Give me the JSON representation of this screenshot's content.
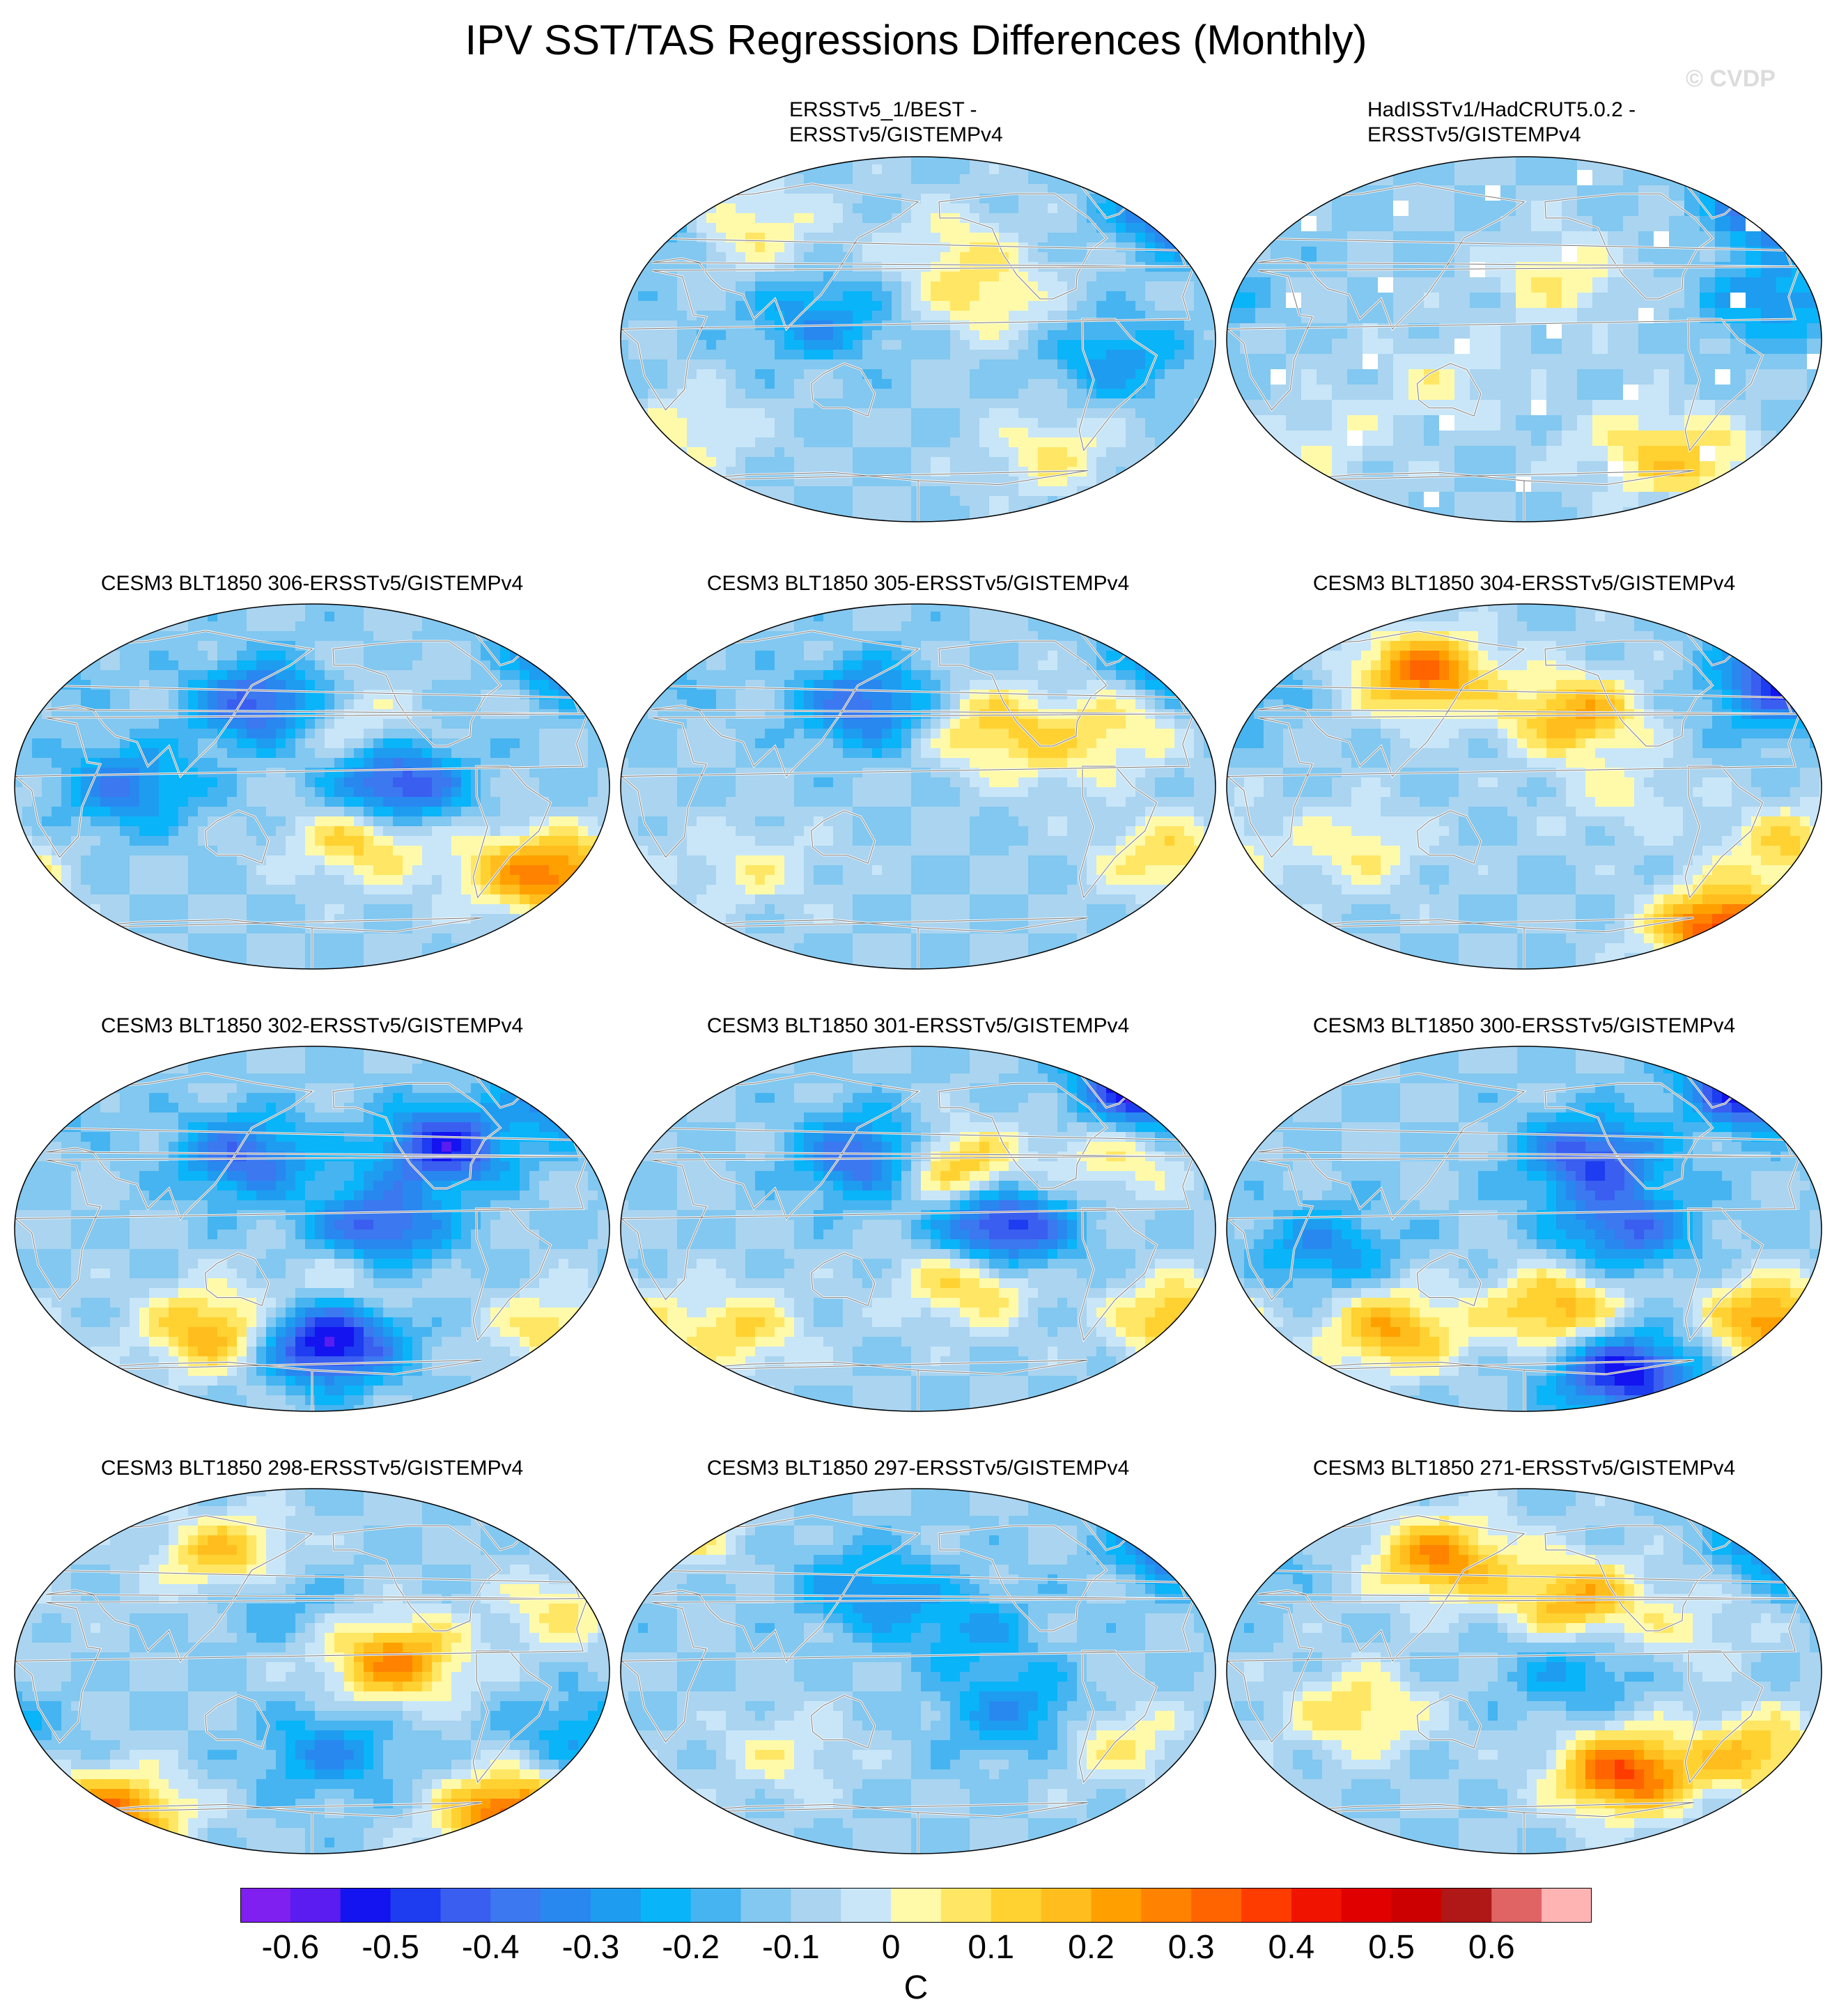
{
  "title": "IPV SST/TAS Regressions Differences (Monthly)",
  "watermark": "© CVDP",
  "colorbar": {
    "units": "C",
    "tick_labels": [
      "-0.6",
      "-0.5",
      "-0.4",
      "-0.3",
      "-0.2",
      "-0.1",
      "0",
      "0.1",
      "0.2",
      "0.3",
      "0.4",
      "0.5",
      "0.6"
    ],
    "colors": [
      "#7f1ff0",
      "#5a1cf0",
      "#1414f0",
      "#1e3cf0",
      "#3a5ef0",
      "#3c78f0",
      "#2888f0",
      "#1e9cf0",
      "#0ab4f8",
      "#46b4f0",
      "#82c8f0",
      "#aad4f0",
      "#c8e6f8",
      "#fffaaa",
      "#ffe664",
      "#ffd232",
      "#ffbe1e",
      "#ffa000",
      "#ff8200",
      "#ff6400",
      "#ff3c00",
      "#f01400",
      "#e00000",
      "#cc0000",
      "#b01818",
      "#e06464",
      "#ffb4b4"
    ]
  },
  "chart_data": {
    "type": "heatmap",
    "title": "IPV SST/TAS Regressions Differences (Monthly)",
    "projection": "robinson-like",
    "units": "C",
    "contour_range": [
      -0.65,
      0.65
    ],
    "contour_interval": 0.05,
    "panels": [
      {
        "title": "ERSSTv5_1/BEST - ERSSTv5/GISTEMPv4",
        "row": 0,
        "col": 1,
        "masked_coarse": false,
        "blobs": [
          [
            -140,
            20,
            0.15
          ],
          [
            -160,
            45,
            0.12
          ],
          [
            -10,
            65,
            -0.6
          ],
          [
            -100,
            -55,
            0.15
          ],
          [
            80,
            55,
            0.15
          ],
          [
            40,
            -45,
            0.12
          ],
          [
            -60,
            -10,
            -0.18
          ],
          [
            120,
            10,
            -0.2
          ]
        ]
      },
      {
        "title": "HadISSTv1/HadCRUT5.0.2 - ERSSTv5/GISTEMPv4",
        "row": 0,
        "col": 2,
        "masked_coarse": true,
        "blobs": [
          [
            -160,
            30,
            0.15
          ],
          [
            -20,
            70,
            -0.55
          ],
          [
            -30,
            20,
            -0.2
          ],
          [
            -120,
            -50,
            0.1
          ],
          [
            60,
            -50,
            0.1
          ],
          [
            130,
            -20,
            0.12
          ],
          [
            -80,
            -60,
            0.2
          ]
        ]
      },
      {
        "title": "CESM3 BLT1850 306-ERSSTv5/GISTEMPv4",
        "row": 1,
        "col": 0,
        "blobs": [
          [
            -130,
            0,
            -0.4
          ],
          [
            -160,
            30,
            0.15
          ],
          [
            -150,
            -25,
            0.25
          ],
          [
            -20,
            -45,
            0.3
          ],
          [
            150,
            40,
            -0.35
          ],
          [
            -10,
            68,
            -0.55
          ],
          [
            70,
            0,
            -0.25
          ],
          [
            -60,
            -40,
            0.2
          ]
        ]
      },
      {
        "title": "CESM3 BLT1850 305-ERSSTv5/GISTEMPv4",
        "row": 1,
        "col": 1,
        "blobs": [
          [
            -140,
            30,
            0.2
          ],
          [
            -100,
            15,
            0.1
          ],
          [
            -30,
            -35,
            0.2
          ],
          [
            150,
            40,
            -0.3
          ],
          [
            -10,
            65,
            -0.45
          ],
          [
            -60,
            30,
            0.15
          ],
          [
            80,
            -40,
            0.12
          ]
        ]
      },
      {
        "title": "CESM3 BLT1850 304-ERSSTv5/GISTEMPv4",
        "row": 1,
        "col": 2,
        "blobs": [
          [
            -150,
            35,
            0.3
          ],
          [
            120,
            55,
            0.4
          ],
          [
            -120,
            -5,
            0.1
          ],
          [
            -60,
            -70,
            0.5
          ],
          [
            -20,
            -30,
            0.2
          ],
          [
            -10,
            60,
            -0.35
          ],
          [
            -30,
            45,
            -0.2
          ],
          [
            80,
            -30,
            0.15
          ]
        ]
      },
      {
        "title": "CESM3 BLT1850 302-ERSSTv5/GISTEMPv4",
        "row": 2,
        "col": 0,
        "blobs": [
          [
            -140,
            0,
            -0.35
          ],
          [
            -100,
            40,
            -0.4
          ],
          [
            -10,
            70,
            -0.55
          ],
          [
            -170,
            -55,
            -0.5
          ],
          [
            -160,
            -25,
            0.15
          ],
          [
            120,
            -50,
            0.3
          ],
          [
            -30,
            -50,
            0.2
          ],
          [
            140,
            35,
            -0.3
          ]
        ]
      },
      {
        "title": "CESM3 BLT1850 301-ERSSTv5/GISTEMPv4",
        "row": 2,
        "col": 1,
        "blobs": [
          [
            -130,
            0,
            -0.45
          ],
          [
            -160,
            30,
            0.3
          ],
          [
            -150,
            -25,
            0.25
          ],
          [
            -20,
            -45,
            0.3
          ],
          [
            -40,
            70,
            -0.55
          ],
          [
            150,
            35,
            -0.35
          ],
          [
            70,
            -50,
            0.2
          ],
          [
            -60,
            35,
            0.15
          ]
        ]
      },
      {
        "title": "CESM3 BLT1850 300-ERSSTv5/GISTEMPv4",
        "row": 2,
        "col": 2,
        "blobs": [
          [
            -140,
            35,
            -0.35
          ],
          [
            -120,
            0,
            -0.3
          ],
          [
            -160,
            -40,
            0.3
          ],
          [
            -30,
            -45,
            0.35
          ],
          [
            100,
            -50,
            0.3
          ],
          [
            -40,
            70,
            -0.5
          ],
          [
            -120,
            -70,
            -0.45
          ],
          [
            60,
            -10,
            -0.2
          ]
        ]
      },
      {
        "title": "CESM3 BLT1850 298-ERSSTv5/GISTEMPv4",
        "row": 3,
        "col": 0,
        "blobs": [
          [
            -130,
            5,
            0.35
          ],
          [
            -170,
            -40,
            -0.2
          ],
          [
            130,
            55,
            0.3
          ],
          [
            -60,
            -70,
            0.45
          ],
          [
            60,
            -70,
            0.4
          ],
          [
            -30,
            30,
            0.15
          ],
          [
            -20,
            -30,
            -0.15
          ],
          [
            150,
            40,
            -0.15
          ]
        ]
      },
      {
        "title": "CESM3 BLT1850 297-ERSSTv5/GISTEMPv4",
        "row": 3,
        "col": 1,
        "blobs": [
          [
            -150,
            20,
            -0.15
          ],
          [
            -120,
            -20,
            -0.2
          ],
          [
            -10,
            65,
            -0.55
          ],
          [
            20,
            70,
            0.4
          ],
          [
            -60,
            -35,
            0.15
          ],
          [
            100,
            -40,
            0.12
          ],
          [
            150,
            40,
            -0.2
          ]
        ]
      },
      {
        "title": "CESM3 BLT1850 271-ERSSTv5/GISTEMPv4",
        "row": 3,
        "col": 2,
        "blobs": [
          [
            -150,
            35,
            0.3
          ],
          [
            130,
            55,
            0.35
          ],
          [
            -120,
            -50,
            0.45
          ],
          [
            -150,
            0,
            -0.15
          ],
          [
            -40,
            -40,
            0.25
          ],
          [
            -10,
            65,
            -0.45
          ],
          [
            80,
            -20,
            0.2
          ],
          [
            -80,
            20,
            0.1
          ]
        ]
      }
    ]
  }
}
